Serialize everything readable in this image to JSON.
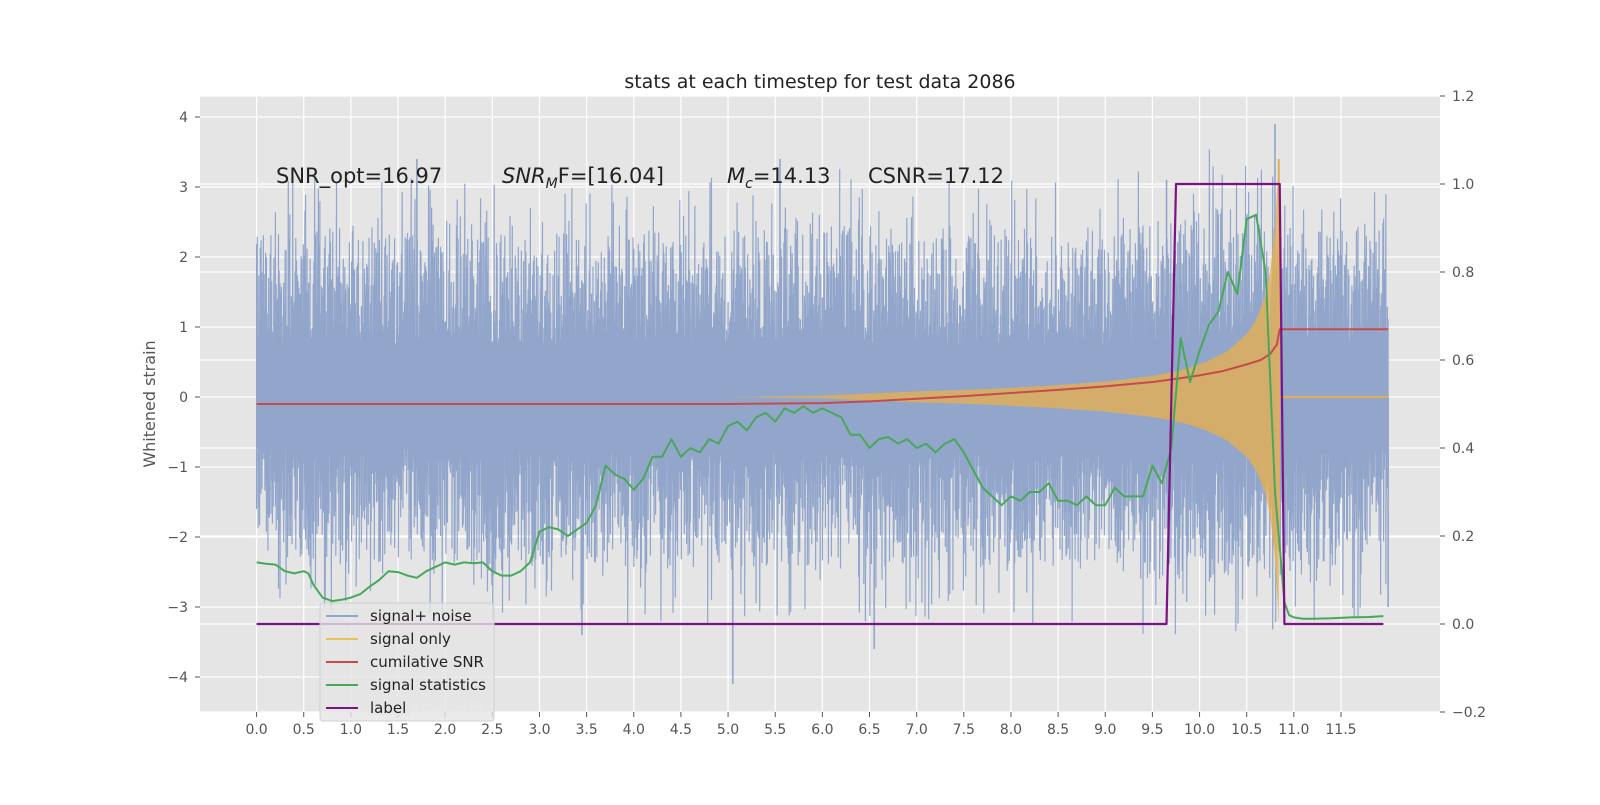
{
  "chart_data": {
    "type": "line",
    "title": "stats at each timestep for test data 2086",
    "ylabel": "Whitened strain",
    "xlabel": "",
    "xlim": [
      -0.6,
      12.55
    ],
    "ylim_left": [
      -4.5,
      4.3
    ],
    "ylim_right": [
      -0.2,
      1.2
    ],
    "grid": true,
    "legend_position": "lower-left",
    "x_ticks": [
      "0.0",
      "0.5",
      "1.0",
      "1.5",
      "2.0",
      "2.5",
      "3.0",
      "3.5",
      "4.0",
      "4.5",
      "5.0",
      "5.5",
      "6.0",
      "6.5",
      "7.0",
      "7.5",
      "8.0",
      "8.5",
      "9.0",
      "9.5",
      "10.0",
      "10.5",
      "11.0",
      "11.5"
    ],
    "y_ticks_left": [
      "4",
      "3",
      "2",
      "1",
      "0",
      "−1",
      "−2",
      "−3",
      "−4"
    ],
    "y_ticks_right": [
      "1.2",
      "1.0",
      "0.8",
      "0.6",
      "0.4",
      "0.2",
      "0.0",
      "−0.2"
    ],
    "annotations": {
      "snr_opt": "SNR_opt=16.97",
      "snr_mf_base": "SNR",
      "snr_mf_sub": "M",
      "snr_mf_rest": "F=[16.04]",
      "mc_base": "M",
      "mc_sub": "c",
      "mc_rest": "=14.13",
      "csnr": "CSNR=17.12"
    },
    "colors": {
      "signal_noise": "#92a6cb",
      "signal_only": "#e3ae55",
      "cumulative_snr": "#c84b4b",
      "signal_statistics": "#48a85a",
      "label": "#7c1283"
    },
    "series": [
      {
        "name": "signal+ noise",
        "axis": "left",
        "x_range": [
          0.0,
          12.0
        ],
        "envelope_upper": [
          2.1,
          2.2,
          2.2,
          2.1,
          2.3,
          2.2,
          2.1,
          2.2,
          2.2,
          2.1,
          2.2,
          2.2,
          2.3,
          2.2,
          2.2,
          2.1,
          2.2,
          2.2,
          2.1,
          2.3,
          2.5,
          2.4,
          2.3,
          2.2,
          2.1
        ],
        "envelope_lower": [
          -2.0,
          -2.1,
          -2.2,
          -2.1,
          -2.2,
          -2.3,
          -2.2,
          -2.2,
          -2.3,
          -2.2,
          -2.3,
          -2.2,
          -2.2,
          -2.3,
          -2.2,
          -2.2,
          -2.3,
          -2.2,
          -2.3,
          -2.4,
          -2.4,
          -2.4,
          -2.3,
          -2.2,
          -2.1
        ],
        "spikes": [
          [
            1.7,
            3.4
          ],
          [
            5.55,
            3.4
          ],
          [
            9.65,
            3.1
          ],
          [
            10.8,
            3.9
          ],
          [
            3.45,
            -3.4
          ],
          [
            5.05,
            -4.1
          ],
          [
            6.55,
            -3.6
          ],
          [
            6.0,
            1.1
          ],
          [
            12.0,
            -3.0
          ]
        ]
      },
      {
        "name": "signal only",
        "axis": "left",
        "x": [
          0,
          5.0,
          6.0,
          6.5,
          7.0,
          7.5,
          8.0,
          8.5,
          9.0,
          9.5,
          9.7,
          9.9,
          10.1,
          10.3,
          10.5,
          10.6,
          10.7,
          10.75,
          10.8,
          10.84,
          10.85,
          12.0
        ],
        "amplitude": [
          0,
          0.0,
          0.02,
          0.05,
          0.08,
          0.1,
          0.13,
          0.17,
          0.22,
          0.3,
          0.35,
          0.42,
          0.52,
          0.66,
          0.9,
          1.1,
          1.45,
          1.8,
          2.4,
          3.4,
          0.0,
          0.0
        ]
      },
      {
        "name": "cumilative SNR",
        "axis": "right",
        "x": [
          0,
          5.0,
          6.0,
          6.5,
          7.0,
          7.5,
          8.0,
          8.5,
          9.0,
          9.5,
          9.75,
          10.0,
          10.25,
          10.5,
          10.65,
          10.75,
          10.82,
          10.85,
          12.0
        ],
        "values": [
          0.5,
          0.5,
          0.502,
          0.506,
          0.512,
          0.518,
          0.525,
          0.532,
          0.54,
          0.55,
          0.557,
          0.565,
          0.575,
          0.59,
          0.6,
          0.614,
          0.635,
          0.67,
          0.67
        ]
      },
      {
        "name": "signal statistics",
        "axis": "right",
        "x": [
          0.0,
          0.1,
          0.2,
          0.3,
          0.4,
          0.5,
          0.55,
          0.6,
          0.7,
          0.8,
          0.9,
          1.0,
          1.1,
          1.2,
          1.3,
          1.4,
          1.5,
          1.6,
          1.7,
          1.8,
          1.9,
          2.0,
          2.1,
          2.2,
          2.3,
          2.4,
          2.5,
          2.6,
          2.7,
          2.8,
          2.9,
          3.0,
          3.1,
          3.2,
          3.3,
          3.4,
          3.5,
          3.6,
          3.7,
          3.8,
          3.9,
          4.0,
          4.1,
          4.2,
          4.3,
          4.4,
          4.5,
          4.6,
          4.7,
          4.8,
          4.9,
          5.0,
          5.1,
          5.2,
          5.3,
          5.4,
          5.5,
          5.6,
          5.7,
          5.8,
          5.9,
          6.0,
          6.1,
          6.2,
          6.3,
          6.4,
          6.5,
          6.6,
          6.7,
          6.8,
          6.9,
          7.0,
          7.1,
          7.2,
          7.3,
          7.4,
          7.5,
          7.6,
          7.7,
          7.8,
          7.9,
          8.0,
          8.1,
          8.2,
          8.3,
          8.4,
          8.5,
          8.6,
          8.7,
          8.8,
          8.9,
          9.0,
          9.1,
          9.2,
          9.3,
          9.4,
          9.5,
          9.6,
          9.7,
          9.8,
          9.9,
          10.0,
          10.1,
          10.2,
          10.3,
          10.4,
          10.5,
          10.6,
          10.7,
          10.8,
          10.9,
          10.95,
          11.0,
          11.1,
          11.2,
          11.4,
          11.6,
          11.8,
          11.95
        ],
        "values": [
          0.14,
          0.137,
          0.135,
          0.12,
          0.115,
          0.12,
          0.115,
          0.09,
          0.06,
          0.052,
          0.055,
          0.06,
          0.068,
          0.085,
          0.1,
          0.12,
          0.118,
          0.11,
          0.105,
          0.12,
          0.13,
          0.14,
          0.135,
          0.14,
          0.138,
          0.14,
          0.12,
          0.11,
          0.11,
          0.12,
          0.14,
          0.21,
          0.22,
          0.215,
          0.2,
          0.215,
          0.23,
          0.27,
          0.36,
          0.34,
          0.33,
          0.305,
          0.33,
          0.38,
          0.38,
          0.42,
          0.38,
          0.4,
          0.39,
          0.42,
          0.41,
          0.45,
          0.46,
          0.44,
          0.47,
          0.48,
          0.46,
          0.49,
          0.48,
          0.495,
          0.48,
          0.49,
          0.48,
          0.47,
          0.43,
          0.43,
          0.4,
          0.42,
          0.425,
          0.41,
          0.42,
          0.4,
          0.41,
          0.39,
          0.41,
          0.42,
          0.39,
          0.35,
          0.31,
          0.29,
          0.27,
          0.29,
          0.28,
          0.3,
          0.3,
          0.32,
          0.28,
          0.28,
          0.27,
          0.29,
          0.27,
          0.27,
          0.31,
          0.29,
          0.29,
          0.29,
          0.36,
          0.32,
          0.4,
          0.65,
          0.55,
          0.62,
          0.68,
          0.71,
          0.8,
          0.75,
          0.92,
          0.93,
          0.8,
          0.3,
          0.05,
          0.02,
          0.015,
          0.012,
          0.012,
          0.013,
          0.015,
          0.016,
          0.018
        ]
      },
      {
        "name": "label",
        "axis": "right",
        "x": [
          0.0,
          9.65,
          9.75,
          10.85,
          10.9,
          11.95
        ],
        "values": [
          0.0,
          0.0,
          1.0,
          1.0,
          0.0,
          0.0
        ]
      }
    ],
    "legend": {
      "entries": [
        "signal+ noise",
        "signal only",
        "cumilative SNR",
        "signal statistics",
        "label"
      ],
      "ghost_text": "cumilative SNR"
    }
  }
}
